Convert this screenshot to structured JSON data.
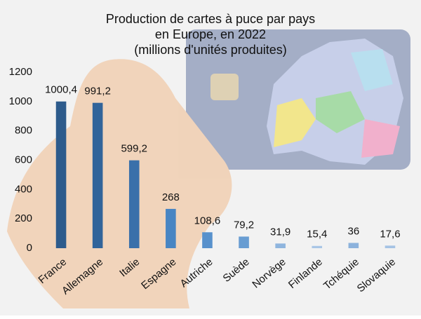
{
  "chart_data": {
    "type": "bar",
    "title": [
      "Production de cartes à puce par pays",
      "en Europe, en 2022",
      "(millions d'unités produites)"
    ],
    "categories": [
      "France",
      "Allemagne",
      "Italie",
      "Espagne",
      "Autriche",
      "Suède",
      "Norvège",
      "Finlande",
      "Tchéquie",
      "Slovaquie"
    ],
    "values": [
      1000.4,
      991.2,
      599.2,
      268,
      108.6,
      79.2,
      31.9,
      15.4,
      36,
      17.6
    ],
    "value_labels": [
      "1000,4",
      "991,2",
      "599,2",
      "268",
      "108,6",
      "79,2",
      "31,9",
      "15,4",
      "36",
      "17,6"
    ],
    "colors": [
      "#2d5b8c",
      "#31649a",
      "#3a70aa",
      "#4885c3",
      "#5891cc",
      "#689dd2",
      "#8fb5de",
      "#a9c6e6",
      "#8cb2dc",
      "#a5c3e4"
    ],
    "ylim": [
      0,
      1200
    ],
    "yticks": [
      0,
      200,
      400,
      600,
      800,
      1000,
      1200
    ],
    "grid": false
  }
}
